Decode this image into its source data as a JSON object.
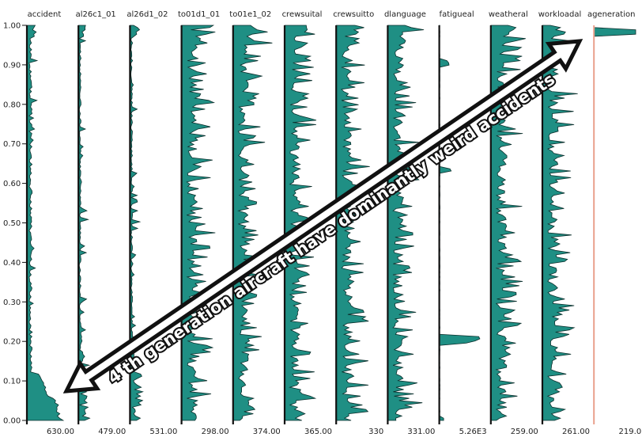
{
  "chart_data": {
    "type": "area",
    "orientation": "vertical-distribution-columns",
    "y_axis": {
      "range": [
        0,
        1
      ],
      "ticks": [
        "1.00",
        "0.90",
        "0.80",
        "0.70",
        "0.60",
        "0.50",
        "0.40",
        "0.30",
        "0.20",
        "0.10",
        "0.00"
      ]
    },
    "columns": [
      {
        "name": "accident",
        "max_label": "630.00",
        "profile": "accident"
      },
      {
        "name": "al26c1_01",
        "max_label": "479.00",
        "profile": "sparse"
      },
      {
        "name": "al26d1_02",
        "max_label": "531.00",
        "profile": "sparse"
      },
      {
        "name": "to01d1_01",
        "max_label": "298.00",
        "profile": "dense"
      },
      {
        "name": "to01e1_02",
        "max_label": "374.00",
        "profile": "dense"
      },
      {
        "name": "crewsuital",
        "max_label": "365.00",
        "profile": "dense"
      },
      {
        "name": "crewsuitto",
        "max_label": "330",
        "profile": "dense"
      },
      {
        "name": "dlanguage",
        "max_label": "331.00",
        "profile": "dense"
      },
      {
        "name": "fatigueal",
        "max_label": "5.26E3",
        "profile": "fatigue"
      },
      {
        "name": "weatheral",
        "max_label": "259.00",
        "profile": "dense"
      },
      {
        "name": "workloadal",
        "max_label": "261.00",
        "profile": "dense"
      },
      {
        "name": "ageneration",
        "max_label": "219.0",
        "profile": "generation"
      }
    ],
    "annotation": "4 th generation aircraft have dominantly weird accidents",
    "colors": {
      "fill": "#1f8f84",
      "stroke": "#0b2f2c",
      "axis": "#111111",
      "highlight_axis": "#e9a08c",
      "arrow": "#111111"
    }
  }
}
